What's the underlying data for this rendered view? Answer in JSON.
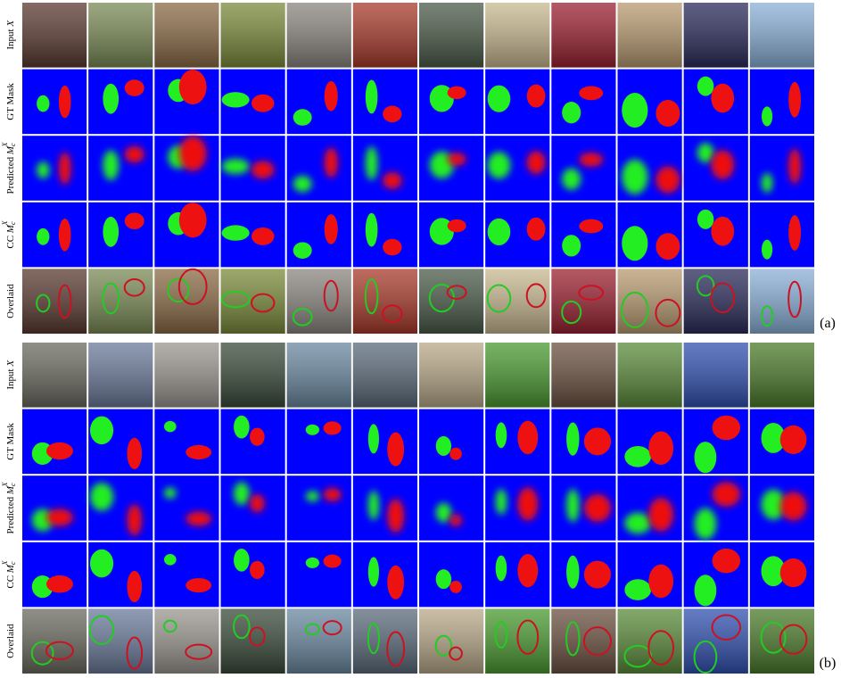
{
  "panels": [
    {
      "tag": "(a)",
      "rows": [
        {
          "text": "Input",
          "var": "X"
        },
        {
          "text": "GT Mask"
        },
        {
          "text": "Predicted",
          "var": "M",
          "sub": "c",
          "sup": "X"
        },
        {
          "text": "CC",
          "var": "M",
          "sub": "c",
          "sup": "X"
        },
        {
          "text": "Overlaid"
        }
      ]
    },
    {
      "tag": "(b)",
      "rows": [
        {
          "text": "Input",
          "var": "X"
        },
        {
          "text": "GT Mask"
        },
        {
          "text": "Predicted",
          "var": "M",
          "sub": "c",
          "sup": "X"
        },
        {
          "text": "CC",
          "var": "M",
          "sub": "c",
          "sup": "X"
        },
        {
          "text": "Overlaid"
        }
      ]
    }
  ]
}
